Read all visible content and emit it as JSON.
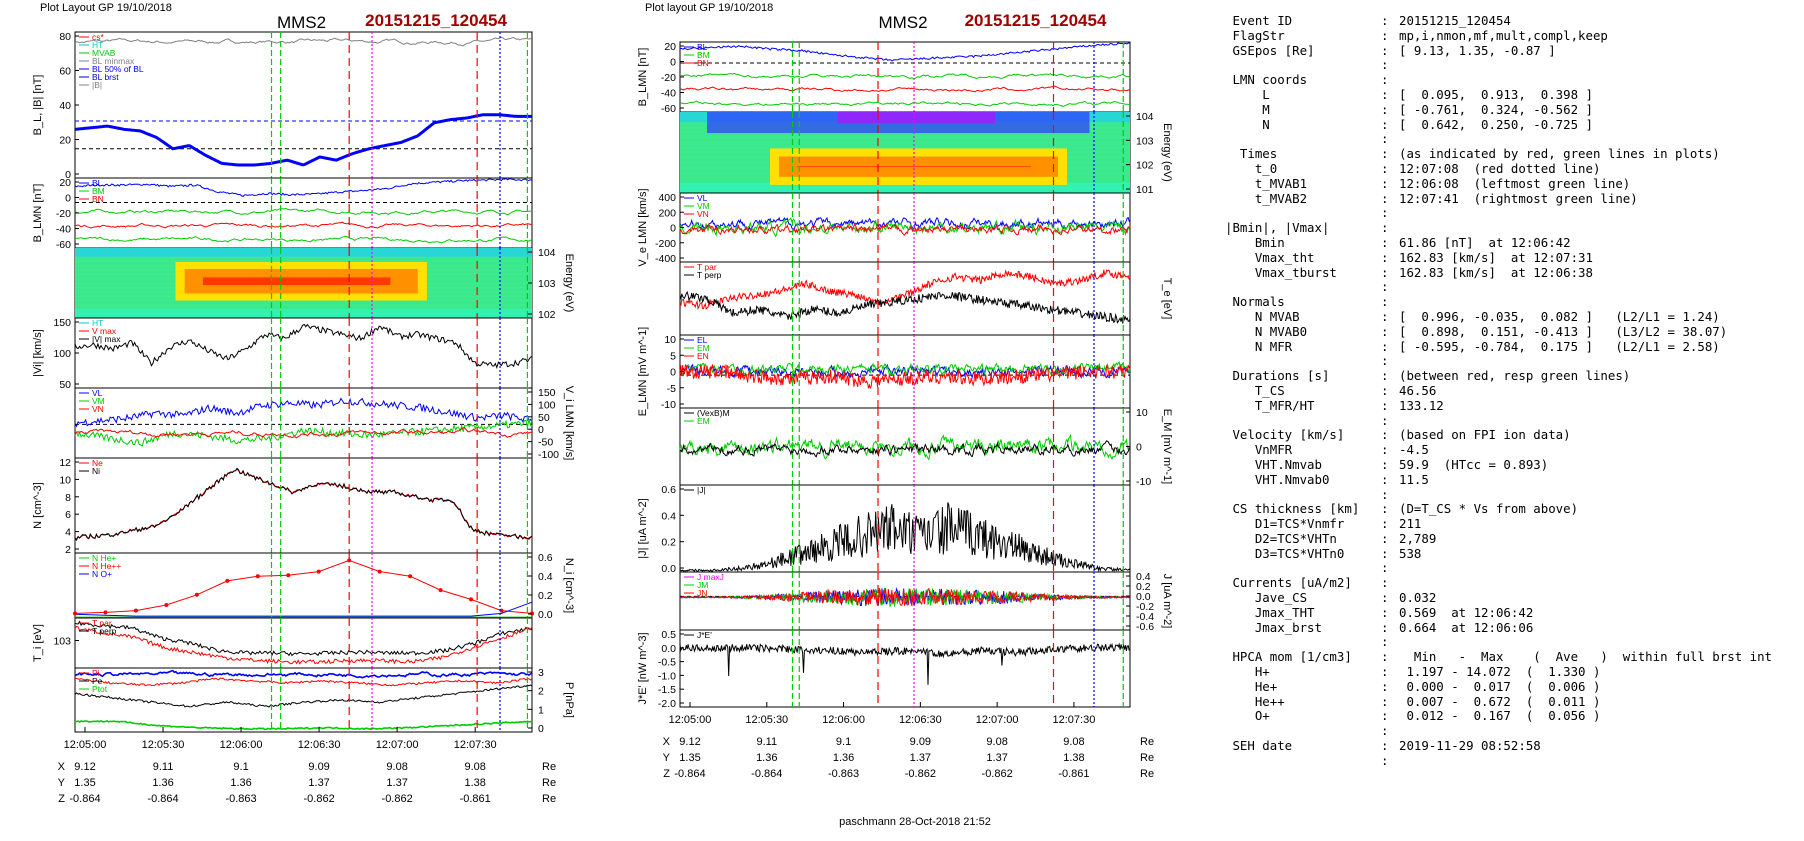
{
  "colors": {
    "black": "#000000",
    "red": "#ff0000",
    "green": "#00cc00",
    "blue": "#0000ff",
    "dkblue": "#0000c8",
    "magenta": "#ff00ff",
    "cyan": "#00c8c8",
    "gray": "#808080",
    "title_red": "#a00000"
  },
  "left": {
    "header": "Plot Layout GP 19/10/2018",
    "spacecraft": "MMS2",
    "event": "20151215_120454",
    "panels": [
      {
        "ylabel": "B_L, |B| [nT]",
        "ticks": [
          "0",
          "20",
          "40",
          "60",
          "80"
        ],
        "legend": [
          "cs*",
          "HT",
          "MVAB",
          "BL minmax",
          "BL 50% of BL",
          "BL brst",
          "|B|"
        ]
      },
      {
        "ylabel": "B_LMN [nT]",
        "ticks": [
          "-60",
          "-40",
          "-20",
          "0",
          "20"
        ],
        "legend": [
          "BL",
          "BM",
          "BN"
        ]
      },
      {
        "ylabel": "Energy (eV)",
        "ticks": [
          "10^2",
          "10^3",
          "10^4"
        ]
      },
      {
        "ylabel": "|Vi| [km/s]",
        "ticks": [
          "50",
          "100",
          "150"
        ],
        "legend": [
          "HT",
          "V max",
          "|V| max"
        ]
      },
      {
        "ylabel": "V_i LMN [km/s]",
        "ticks": [
          "-100",
          "-50",
          "0",
          "50",
          "100",
          "150"
        ],
        "legend": [
          "VL",
          "VM",
          "VN"
        ]
      },
      {
        "ylabel": "N [cm^-3]",
        "ticks": [
          "2",
          "4",
          "6",
          "8",
          "10",
          "12"
        ],
        "legend": [
          "Ne",
          "Ni"
        ]
      },
      {
        "ylabel": "N_i [cm^-3]",
        "ticks": [
          "0.0",
          "0.2",
          "0.4",
          "0.6"
        ],
        "legend": [
          "N He+",
          "N He++",
          "N O+"
        ]
      },
      {
        "ylabel": "T_i [eV]",
        "ticks": [
          "10^3"
        ],
        "legend": [
          "T par",
          "T perp"
        ]
      },
      {
        "ylabel": "P [nPa]",
        "ticks": [
          "0",
          "1",
          "2",
          "3"
        ],
        "legend": [
          "Pi",
          "Pe",
          "Ptot"
        ]
      }
    ],
    "times": [
      "12:05:00",
      "12:05:30",
      "12:06:00",
      "12:06:30",
      "12:07:00",
      "12:07:30"
    ],
    "coords": {
      "X": [
        "9.12",
        "9.11",
        "9.1",
        "9.09",
        "9.08",
        "9.08"
      ],
      "Y": [
        "1.35",
        "1.36",
        "1.36",
        "1.37",
        "1.37",
        "1.38"
      ],
      "Z": [
        "-0.864",
        "-0.864",
        "-0.863",
        "-0.862",
        "-0.862",
        "-0.861"
      ],
      "unit": "Re"
    },
    "footer": "paschmann 28-Oct-2018 21:52"
  },
  "mid": {
    "header": "Plot layout GP 19/10/2018",
    "spacecraft": "MMS2",
    "event": "20151215_120454",
    "panels": [
      {
        "ylabel": "B_LMN [nT]",
        "ticks": [
          "-60",
          "-40",
          "-20",
          "0",
          "20"
        ],
        "legend": [
          "BL",
          "BM",
          "BN"
        ]
      },
      {
        "ylabel": "Energy (eV)",
        "ticks": [
          "10^1",
          "10^2",
          "10^3",
          "10^4"
        ]
      },
      {
        "ylabel": "V_e LMN [km/s]",
        "ticks": [
          "-400",
          "-200",
          "0",
          "200",
          "400"
        ],
        "legend": [
          "VL",
          "VM",
          "VN"
        ]
      },
      {
        "ylabel": "T_e [eV]",
        "ticks": [],
        "legend": [
          "T par",
          "T perp"
        ]
      },
      {
        "ylabel": "E_LMN [mV m^-1]",
        "ticks": [
          "-10",
          "-5",
          "0",
          "5",
          "10"
        ],
        "legend": [
          "EL",
          "EM",
          "EN"
        ]
      },
      {
        "ylabel": "E_M [mV m^-1]",
        "ticks": [
          "-10",
          "0",
          "10"
        ],
        "legend": [
          "(VexB)M",
          "EM"
        ]
      },
      {
        "ylabel": "|J| [uA m^-2]",
        "ticks": [
          "0.0",
          "0.2",
          "0.4",
          "0.6"
        ],
        "legend": [
          "|J|"
        ]
      },
      {
        "ylabel": "J [uA m^-2]",
        "ticks": [
          "-0.6",
          "-0.4",
          "-0.2",
          "0.0",
          "0.2",
          "0.4"
        ],
        "legend": [
          "J maxJ",
          "JM",
          "JN"
        ]
      },
      {
        "ylabel": "J*E' [nW m^-3]",
        "ticks": [
          "-2.0",
          "-1.5",
          "-1.0",
          "-0.5",
          "0.0",
          "0.5"
        ],
        "legend": [
          "J*E'"
        ]
      }
    ],
    "times": [
      "12:05:00",
      "12:05:30",
      "12:06:00",
      "12:06:30",
      "12:07:00",
      "12:07:30"
    ],
    "coords": {
      "X": [
        "9.12",
        "9.11",
        "9.1",
        "9.09",
        "9.08",
        "9.08"
      ],
      "Y": [
        "1.35",
        "1.36",
        "1.36",
        "1.37",
        "1.37",
        "1.38"
      ],
      "Z": [
        "-0.864",
        "-0.864",
        "-0.863",
        "-0.862",
        "-0.862",
        "-0.861"
      ],
      "unit": "Re"
    },
    "footer": "paschmann 28-Oct-2018 21:52"
  },
  "info": [
    {
      "k": " Event ID",
      "v": "20151215_120454"
    },
    {
      "k": " FlagStr",
      "v": "mp,i,nmon,mf,mult,compl,keep"
    },
    {
      "k": " GSEpos [Re]",
      "v": "[ 9.13, 1.35, -0.87 ]"
    },
    {
      "k": "",
      "v": ""
    },
    {
      "k": " LMN coords",
      "v": ""
    },
    {
      "k": "     L",
      "v": "[  0.095,  0.913,  0.398 ]"
    },
    {
      "k": "     M",
      "v": "[ -0.761,  0.324, -0.562 ]"
    },
    {
      "k": "     N",
      "v": "[  0.642,  0.250, -0.725 ]"
    },
    {
      "k": "",
      "v": ""
    },
    {
      "k": "  Times",
      "v": "(as indicated by red, green lines in plots)"
    },
    {
      "k": "    t_0",
      "v": "12:07:08  (red dotted line)"
    },
    {
      "k": "    t_MVAB1",
      "v": "12:06:08  (leftmost green line)"
    },
    {
      "k": "    t_MVAB2",
      "v": "12:07:41  (rightmost green line)"
    },
    {
      "k": "",
      "v": ""
    },
    {
      "k": "|Bmin|, |Vmax|",
      "v": ""
    },
    {
      "k": "    Bmin",
      "v": "61.86 [nT]  at 12:06:42"
    },
    {
      "k": "    Vmax_tht",
      "v": "162.83 [km/s]  at 12:07:31"
    },
    {
      "k": "    Vmax_tburst",
      "v": "162.83 [km/s]  at 12:06:38"
    },
    {
      "k": "",
      "v": ""
    },
    {
      "k": " Normals",
      "v": ""
    },
    {
      "k": "    N MVAB",
      "v": "[  0.996, -0.035,  0.082 ]   (L2/L1 = 1.24)"
    },
    {
      "k": "    N MVAB0",
      "v": "[  0.898,  0.151, -0.413 ]   (L3/L2 = 38.07)"
    },
    {
      "k": "    N MFR",
      "v": "[ -0.595, -0.784,  0.175 ]   (L2/L1 = 2.58)"
    },
    {
      "k": "",
      "v": ""
    },
    {
      "k": " Durations [s]",
      "v": "(between red, resp green lines)"
    },
    {
      "k": "    T_CS",
      "v": "46.56"
    },
    {
      "k": "    T_MFR/HT",
      "v": "133.12"
    },
    {
      "k": "",
      "v": ""
    },
    {
      "k": " Velocity [km/s]",
      "v": "(based on FPI ion data)"
    },
    {
      "k": "    VnMFR",
      "v": "-4.5"
    },
    {
      "k": "    VHT.Nmvab",
      "v": "59.9  (HTcc = 0.893)"
    },
    {
      "k": "    VHT.Nmvab0",
      "v": "11.5"
    },
    {
      "k": "",
      "v": ""
    },
    {
      "k": " CS thickness [km]",
      "v": "(D=T_CS * Vs from above)"
    },
    {
      "k": "    D1=TCS*Vnmfr",
      "v": "211"
    },
    {
      "k": "    D2=TCS*VHTn",
      "v": "2,789"
    },
    {
      "k": "    D3=TCS*VHTn0",
      "v": "538"
    },
    {
      "k": "",
      "v": ""
    },
    {
      "k": " Currents [uA/m2]",
      "v": ""
    },
    {
      "k": "    Jave_CS",
      "v": "0.032"
    },
    {
      "k": "    Jmax_THT",
      "v": "0.569  at 12:06:42"
    },
    {
      "k": "    Jmax_brst",
      "v": "0.664  at 12:06:06"
    },
    {
      "k": "",
      "v": ""
    },
    {
      "k": " HPCA mom [1/cm3]",
      "v": "  Min   -  Max    (  Ave   )  within full brst int"
    },
    {
      "k": "    H+",
      "v": " 1.197 - 14.072  (  1.330 )"
    },
    {
      "k": "    He+",
      "v": " 0.000 -  0.017  (  0.006 )"
    },
    {
      "k": "    He++",
      "v": " 0.007 -  0.672  (  0.011 )"
    },
    {
      "k": "    O+",
      "v": " 0.012 -  0.167  (  0.056 )"
    },
    {
      "k": "",
      "v": ""
    },
    {
      "k": " SEH date",
      "v": "2019-11-29 08:52:58"
    },
    {
      "k": "",
      "v": ""
    }
  ]
}
